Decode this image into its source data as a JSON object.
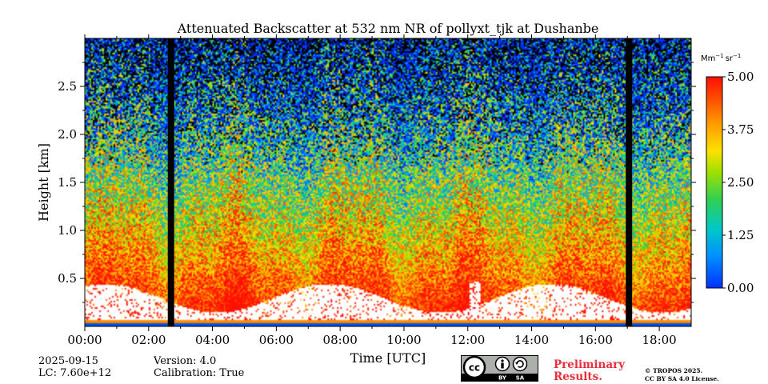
{
  "chart_data": {
    "type": "heatmap",
    "title": "Attenuated Backscatter at 532 nm NR of pollyxt_tjk at Dushanbe",
    "xlabel": "Time [UTC]",
    "ylabel": "Height [km]",
    "xlim": [
      0,
      19
    ],
    "ylim": [
      0,
      3.0
    ],
    "x_ticks": [
      0,
      2,
      4,
      6,
      8,
      10,
      12,
      14,
      16,
      18
    ],
    "x_tick_labels": [
      "00:00",
      "02:00",
      "04:00",
      "06:00",
      "08:00",
      "10:00",
      "12:00",
      "14:00",
      "16:00",
      "18:00"
    ],
    "y_ticks": [
      0.5,
      1.0,
      1.5,
      2.0,
      2.5
    ],
    "y_tick_labels": [
      "0.5",
      "1.0",
      "1.5",
      "2.0",
      "2.5"
    ],
    "colorbar": {
      "label": "Mm⁻¹ sr⁻¹",
      "label_main": "Mm",
      "label_sup1": "−1",
      "label_mid": "sr",
      "label_sup2": "−1",
      "min": 0.0,
      "max": 5.0,
      "ticks": [
        0.0,
        1.25,
        2.5,
        3.75,
        5.0
      ],
      "tick_labels": [
        "0.00",
        "1.25",
        "2.50",
        "3.75",
        "5.00"
      ]
    },
    "gaps_hours": [
      [
        2.6,
        2.8
      ],
      [
        16.95,
        17.15
      ]
    ],
    "colors": {
      "low": "#0040ff",
      "mid_low": "#00c0ff",
      "mid": "#40e040",
      "mid_high": "#ffe000",
      "high": "#ff4000",
      "max": "#ff0000",
      "gap": "#000000"
    }
  },
  "footer": {
    "date": "2025-09-15",
    "lc": "LC: 7.60e+12",
    "version": "Version: 4.0",
    "calibration": "Calibration: True",
    "preliminary_line1": "Preliminary",
    "preliminary_line2": "Results.",
    "copyright_line1": "© TROPOS 2025.",
    "copyright_line2": "CC BY SA 4.0 License.",
    "cc_label": "cc",
    "by_label": "BY",
    "sa_label": "SA"
  }
}
